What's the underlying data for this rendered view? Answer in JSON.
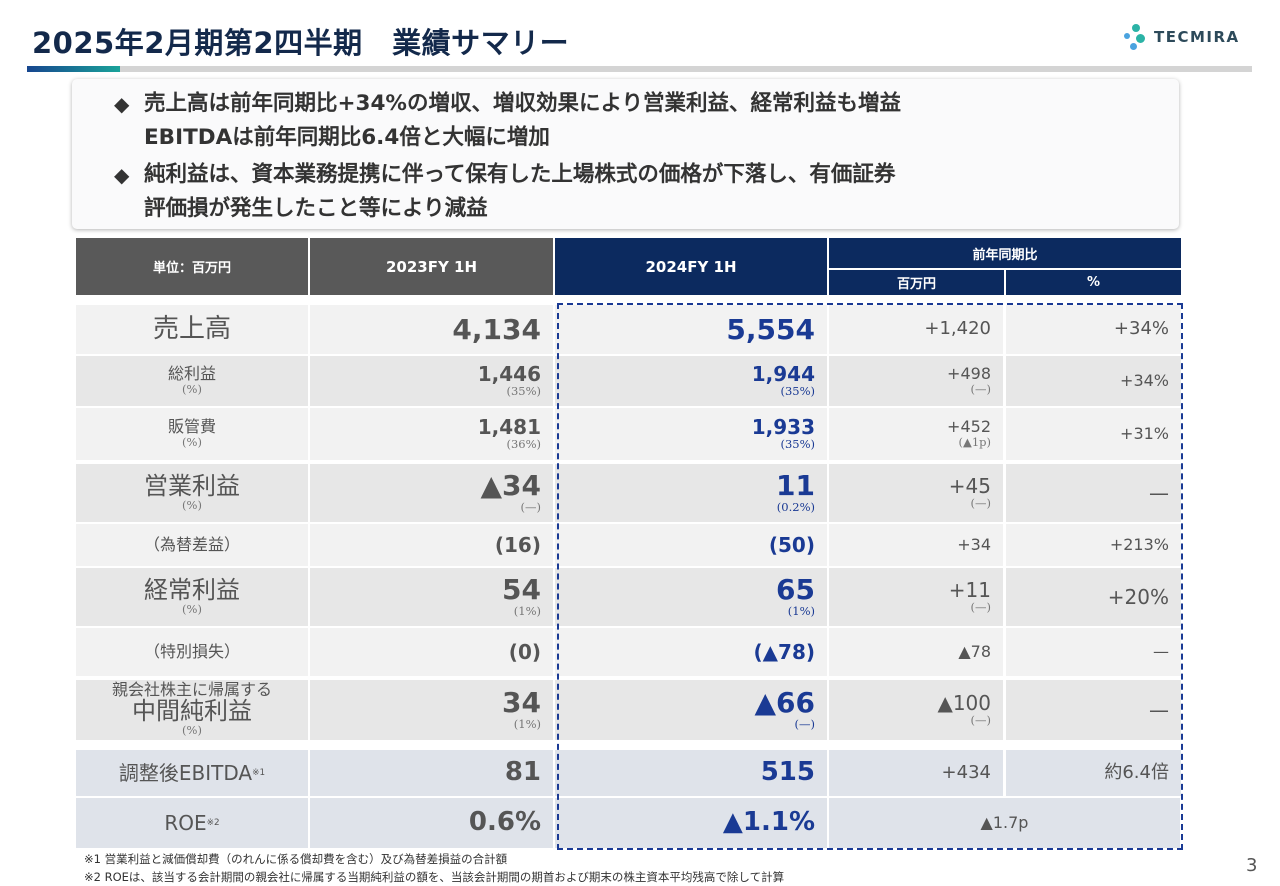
{
  "title": "2025年2月期第2四半期　業績サマリー",
  "logo": {
    "text": "TECMIRA"
  },
  "summary": [
    {
      "line1": "売上高は前年同期比+34%の増収、増収効果により営業利益、経常利益も増益",
      "line2": "EBITDAは前年同期比6.4倍と大幅に増加"
    },
    {
      "line1": "純利益は、資本業務提携に伴って保有した上場株式の価格が下落し、有価証券",
      "line2": "評価損が発生したこと等により減益"
    }
  ],
  "table": {
    "header": {
      "unit": "単位：百万円",
      "fy2023": "2023FY 1H",
      "fy2024": "2024FY 1H",
      "yoy": "前年同期比",
      "yoy_amount": "百万円",
      "yoy_pct": "%"
    },
    "rows": [
      {
        "label": "売上高",
        "label_sub": "",
        "prev": "4,134",
        "prev_sub": "",
        "cur": "5,554",
        "cur_sub": "",
        "diff": "+1,420",
        "diff_sub": "",
        "pct": "+34%"
      },
      {
        "label": "総利益",
        "label_sub": "(%)",
        "prev": "1,446",
        "prev_sub": "(35%)",
        "cur": "1,944",
        "cur_sub": "(35%)",
        "diff": "+498",
        "diff_sub": "(—)",
        "pct": "+34%"
      },
      {
        "label": "販管費",
        "label_sub": "(%)",
        "prev": "1,481",
        "prev_sub": "(36%)",
        "cur": "1,933",
        "cur_sub": "(35%)",
        "diff": "+452",
        "diff_sub": "(▲1p)",
        "pct": "+31%"
      },
      {
        "label": "営業利益",
        "label_sub": "(%)",
        "prev": "▲34",
        "prev_sub": "(—)",
        "cur": "11",
        "cur_sub": "(0.2%)",
        "diff": "+45",
        "diff_sub": "(—)",
        "pct": "—"
      },
      {
        "label": "（為替差益）",
        "label_sub": "",
        "prev": "(16)",
        "prev_sub": "",
        "cur": "(50)",
        "cur_sub": "",
        "diff": "+34",
        "diff_sub": "",
        "pct": "+213%"
      },
      {
        "label": "経常利益",
        "label_sub": "(%)",
        "prev": "54",
        "prev_sub": "(1%)",
        "cur": "65",
        "cur_sub": "(1%)",
        "diff": "+11",
        "diff_sub": "(—)",
        "pct": "+20%"
      },
      {
        "label": "（特別損失）",
        "label_sub": "",
        "prev": "(0)",
        "prev_sub": "",
        "cur": "(▲78)",
        "cur_sub": "",
        "diff": "▲78",
        "diff_sub": "",
        "pct": "—"
      },
      {
        "label_pre": "親会社株主に帰属する",
        "label": "中間純利益",
        "label_sub": "(%)",
        "prev": "34",
        "prev_sub": "(1%)",
        "cur": "▲66",
        "cur_sub": "(—)",
        "diff": "▲100",
        "diff_sub": "(—)",
        "pct": "—"
      },
      {
        "label": "調整後EBITDA",
        "label_note": "※1",
        "label_sub": "",
        "prev": "81",
        "prev_sub": "",
        "cur": "515",
        "cur_sub": "",
        "diff": "+434",
        "diff_sub": "",
        "pct": "約6.4倍"
      },
      {
        "label": "ROE",
        "label_note": "※2",
        "label_sub": "",
        "prev": "0.6%",
        "prev_sub": "",
        "cur": "▲1.1%",
        "cur_sub": "",
        "diff": "▲1.7p",
        "diff_sub": "",
        "pct": ""
      }
    ]
  },
  "footnotes": [
    "※1 営業利益と減価償却費（のれんに係る償却費を含む）及び為替差損益の合計額",
    "※2 ROEは、該当する会計期間の親会社に帰属する当期純利益の額を、当該会計期間の期首および期末の株主資本平均残高で除して計算"
  ],
  "page_number": "3",
  "colors": {
    "navy": "#0c2a5f",
    "accent_blue": "#1a3a94",
    "teal": "#1aa39a",
    "header_gray": "#595959"
  }
}
